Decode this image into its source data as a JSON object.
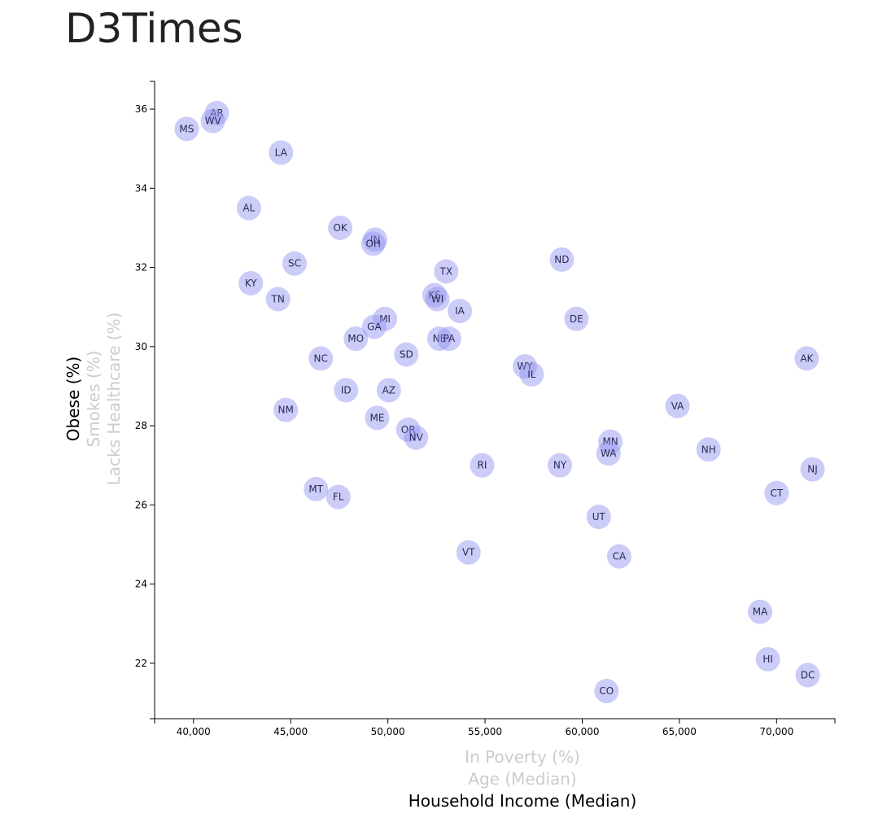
{
  "page": {
    "title": "D3Times"
  },
  "colors": {
    "marker_fill": "#8f8ff0",
    "marker_opacity": 0.45,
    "marker_label": "#2a2a55",
    "axis": "#000000",
    "label_active": "#000000",
    "label_inactive": "#cccccc"
  },
  "axis_labels": {
    "x": [
      {
        "text": "In Poverty (%)",
        "active": false
      },
      {
        "text": "Age (Median)",
        "active": false
      },
      {
        "text": "Household Income (Median)",
        "active": true
      }
    ],
    "y": [
      {
        "text": "Obese (%)",
        "active": true
      },
      {
        "text": "Smokes (%)",
        "active": false
      },
      {
        "text": "Lacks Healthcare (%)",
        "active": false
      }
    ]
  },
  "chart_data": {
    "type": "scatter",
    "title": "",
    "xlabel": "Household Income (Median)",
    "ylabel": "Obese (%)",
    "xlim": [
      38000,
      73000
    ],
    "ylim": [
      20.6,
      36.7
    ],
    "xticks": [
      40000,
      45000,
      50000,
      55000,
      60000,
      65000,
      70000
    ],
    "xtick_labels": [
      "40,000",
      "45,000",
      "50,000",
      "55,000",
      "60,000",
      "65,000",
      "70,000"
    ],
    "yticks": [
      22,
      24,
      26,
      28,
      30,
      32,
      34,
      36
    ],
    "ytick_labels": [
      "22",
      "24",
      "26",
      "28",
      "30",
      "32",
      "34",
      "36"
    ],
    "grid": false,
    "points": [
      {
        "label": "AR",
        "x": 41200,
        "y": 35.9
      },
      {
        "label": "WV",
        "x": 41000,
        "y": 35.7
      },
      {
        "label": "MS",
        "x": 39650,
        "y": 35.5
      },
      {
        "label": "LA",
        "x": 44500,
        "y": 34.9
      },
      {
        "label": "AL",
        "x": 42850,
        "y": 33.5
      },
      {
        "label": "OK",
        "x": 47550,
        "y": 33.0
      },
      {
        "label": "IN",
        "x": 49350,
        "y": 32.7
      },
      {
        "label": "OH",
        "x": 49250,
        "y": 32.6
      },
      {
        "label": "SC",
        "x": 45200,
        "y": 32.1
      },
      {
        "label": "ND",
        "x": 58950,
        "y": 32.2
      },
      {
        "label": "TX",
        "x": 53000,
        "y": 31.9
      },
      {
        "label": "KY",
        "x": 42950,
        "y": 31.6
      },
      {
        "label": "KS",
        "x": 52400,
        "y": 31.3
      },
      {
        "label": "WI",
        "x": 52550,
        "y": 31.2
      },
      {
        "label": "TN",
        "x": 44350,
        "y": 31.2
      },
      {
        "label": "IA",
        "x": 53700,
        "y": 30.9
      },
      {
        "label": "MI",
        "x": 49850,
        "y": 30.7
      },
      {
        "label": "DE",
        "x": 59700,
        "y": 30.7
      },
      {
        "label": "GA",
        "x": 49300,
        "y": 30.5
      },
      {
        "label": "MO",
        "x": 48350,
        "y": 30.2
      },
      {
        "label": "NE",
        "x": 52650,
        "y": 30.2
      },
      {
        "label": "PA",
        "x": 53150,
        "y": 30.2
      },
      {
        "label": "SD",
        "x": 50950,
        "y": 29.8
      },
      {
        "label": "NC",
        "x": 46550,
        "y": 29.7
      },
      {
        "label": "AK",
        "x": 71550,
        "y": 29.7
      },
      {
        "label": "WY",
        "x": 57050,
        "y": 29.5
      },
      {
        "label": "IL",
        "x": 57400,
        "y": 29.3
      },
      {
        "label": "ID",
        "x": 47850,
        "y": 28.9
      },
      {
        "label": "AZ",
        "x": 50050,
        "y": 28.9
      },
      {
        "label": "VA",
        "x": 64900,
        "y": 28.5
      },
      {
        "label": "NM",
        "x": 44750,
        "y": 28.4
      },
      {
        "label": "ME",
        "x": 49450,
        "y": 28.2
      },
      {
        "label": "OR",
        "x": 51050,
        "y": 27.9
      },
      {
        "label": "NV",
        "x": 51450,
        "y": 27.7
      },
      {
        "label": "MN",
        "x": 61450,
        "y": 27.6
      },
      {
        "label": "NH",
        "x": 66500,
        "y": 27.4
      },
      {
        "label": "WA",
        "x": 61350,
        "y": 27.3
      },
      {
        "label": "RI",
        "x": 54850,
        "y": 27.0
      },
      {
        "label": "NY",
        "x": 58850,
        "y": 27.0
      },
      {
        "label": "NJ",
        "x": 71850,
        "y": 26.9
      },
      {
        "label": "MT",
        "x": 46300,
        "y": 26.4
      },
      {
        "label": "CT",
        "x": 70000,
        "y": 26.3
      },
      {
        "label": "FL",
        "x": 47450,
        "y": 26.2
      },
      {
        "label": "UT",
        "x": 60850,
        "y": 25.7
      },
      {
        "label": "VT",
        "x": 54150,
        "y": 24.8
      },
      {
        "label": "CA",
        "x": 61900,
        "y": 24.7
      },
      {
        "label": "MA",
        "x": 69150,
        "y": 23.3
      },
      {
        "label": "HI",
        "x": 69550,
        "y": 22.1
      },
      {
        "label": "DC",
        "x": 71600,
        "y": 21.7
      },
      {
        "label": "CO",
        "x": 61250,
        "y": 21.3
      }
    ]
  }
}
